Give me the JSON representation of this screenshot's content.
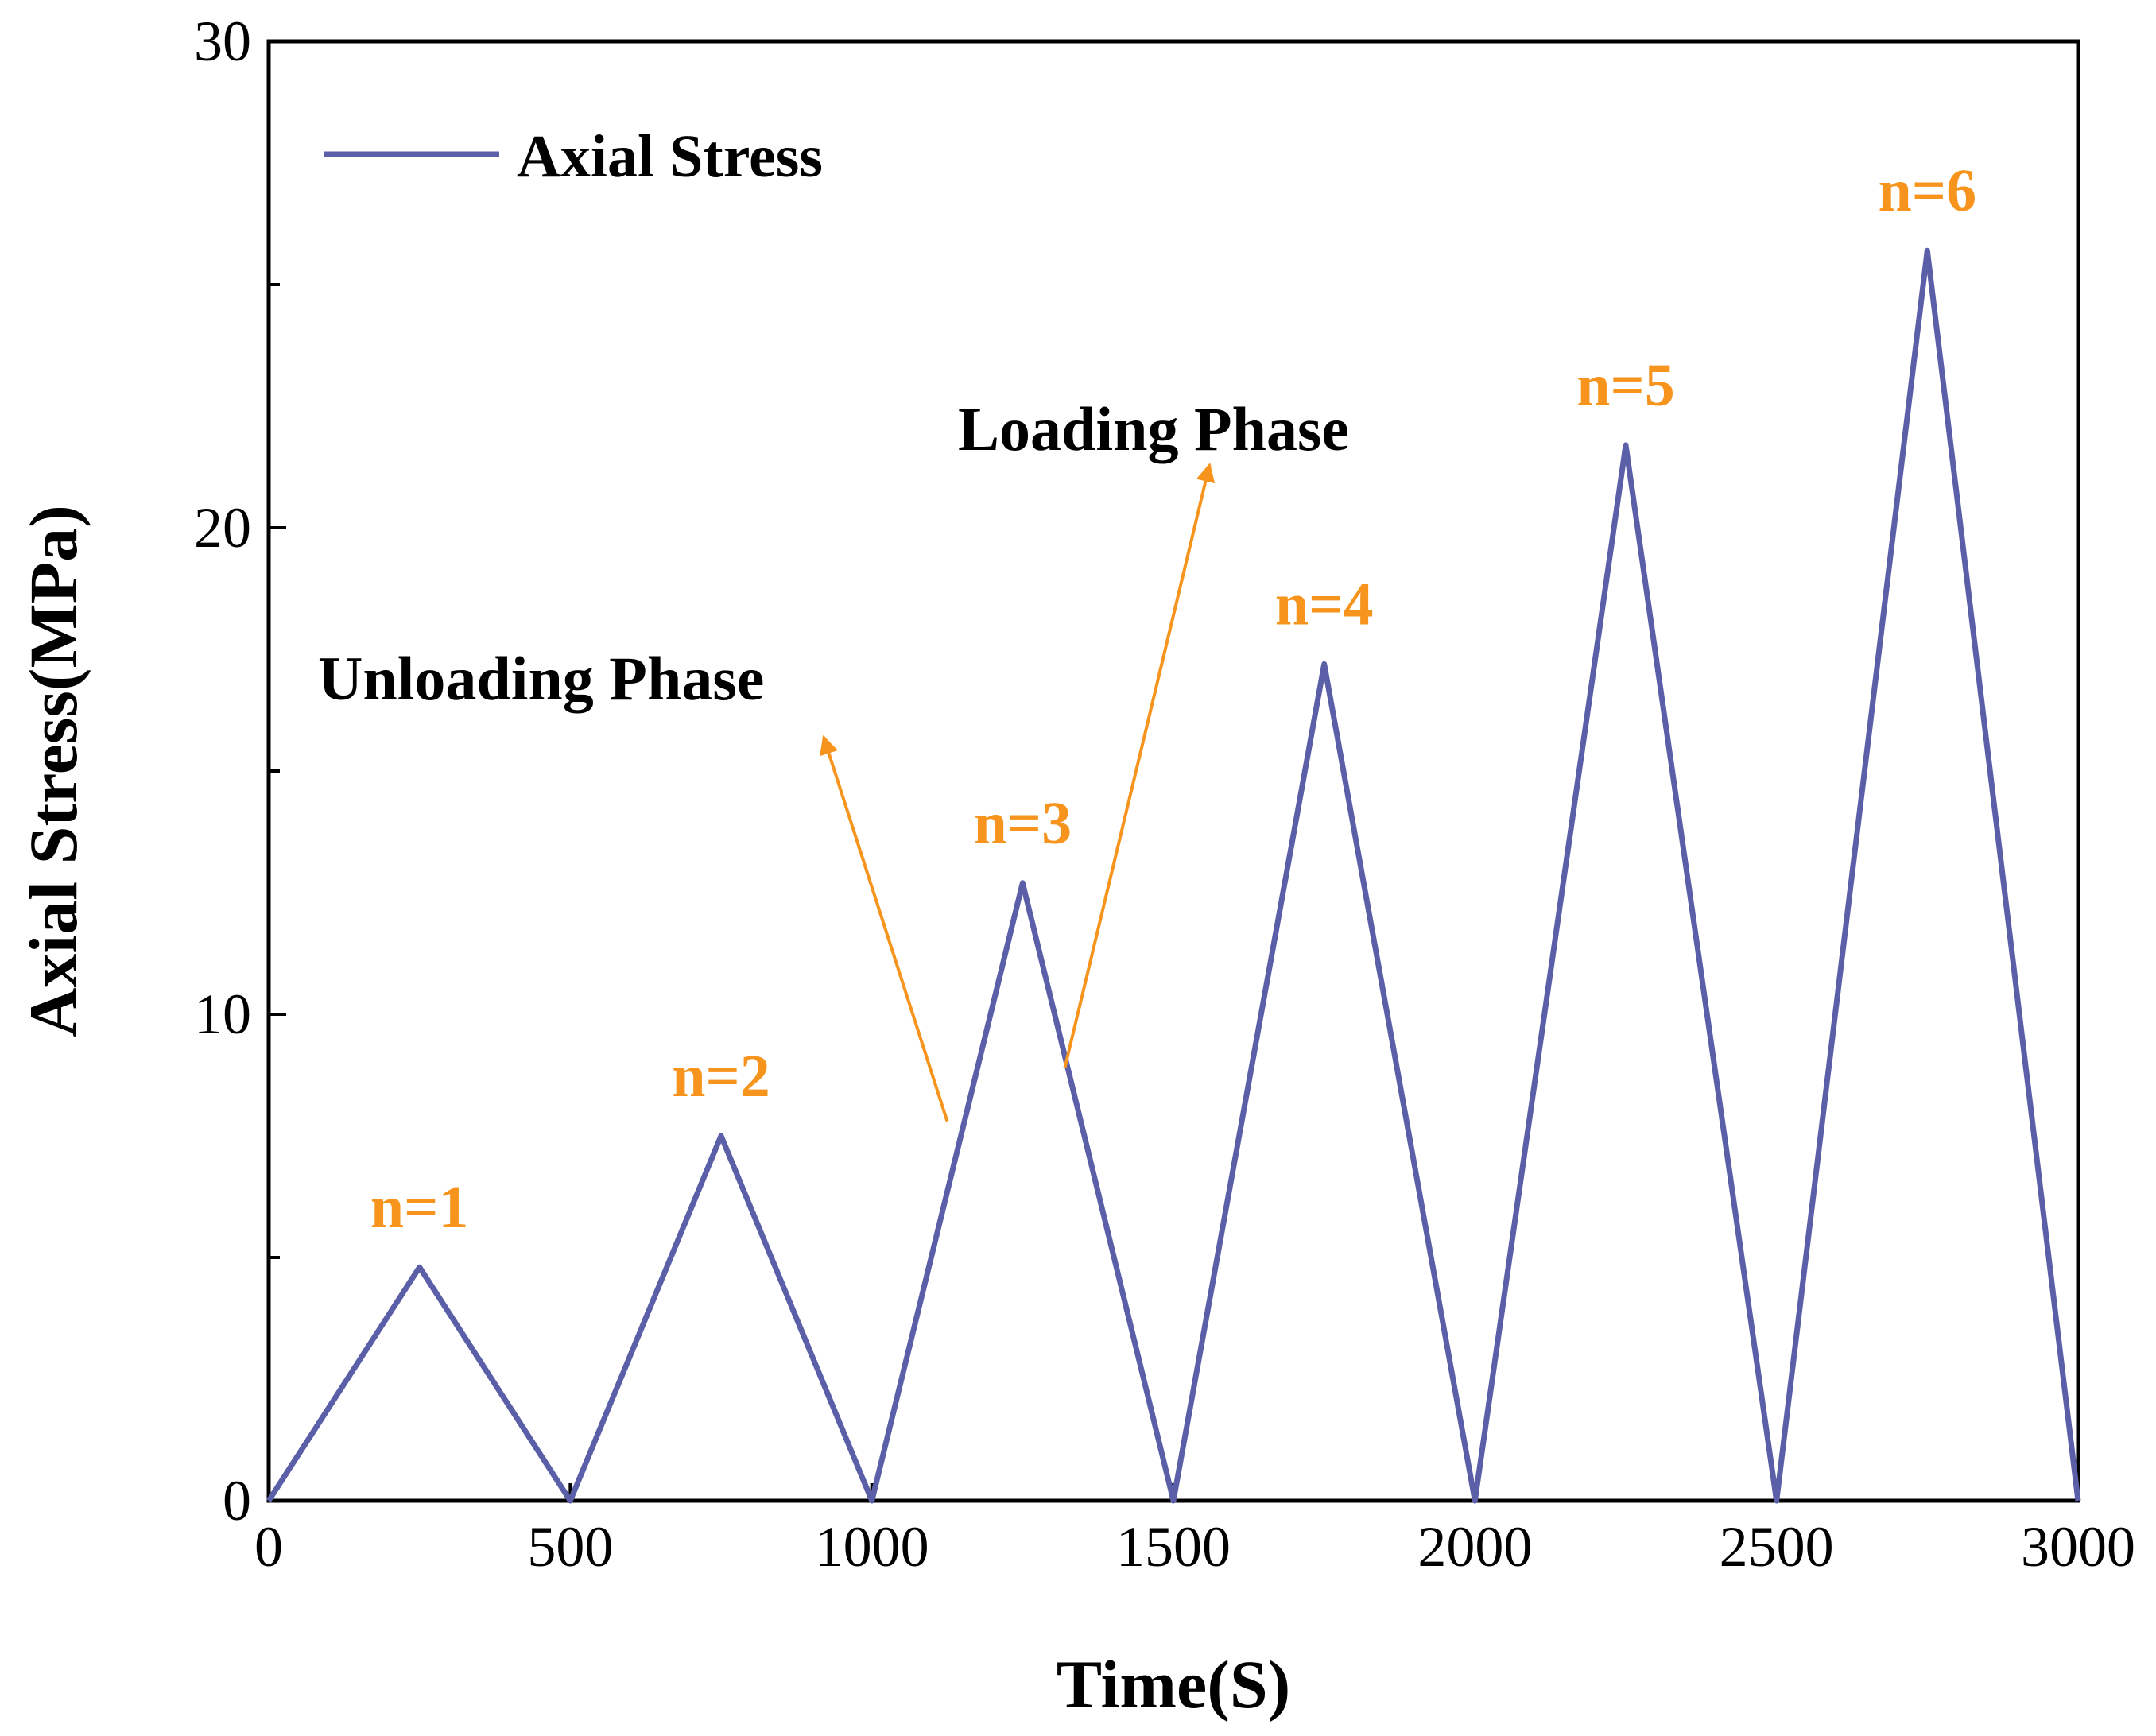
{
  "chart_data": {
    "type": "line",
    "title": "",
    "xlabel": "Time(S)",
    "ylabel": "Axial Stress(MPa)",
    "xlim": [
      0,
      3000
    ],
    "ylim": [
      0,
      30
    ],
    "x_ticks": [
      0,
      500,
      1000,
      1500,
      2000,
      2500,
      3000
    ],
    "y_ticks": [
      0,
      10,
      20,
      30
    ],
    "y_minor_ticks": [
      5,
      15,
      25
    ],
    "series": [
      {
        "name": "Axial Stress",
        "color": "#5b5fa8",
        "x": [
          0,
          250,
          500,
          750,
          1000,
          1250,
          1500,
          1750,
          2000,
          2250,
          2500,
          2750,
          3000
        ],
        "y": [
          0,
          4.8,
          0,
          7.5,
          0,
          12.7,
          0,
          17.2,
          0,
          21.7,
          0,
          25.7,
          0
        ]
      }
    ],
    "legend": {
      "position": "top-left",
      "entries": [
        "Axial Stress"
      ]
    },
    "cycle_labels": [
      {
        "text": "n=1",
        "x": 250,
        "y": 4.8
      },
      {
        "text": "n=2",
        "x": 750,
        "y": 7.5
      },
      {
        "text": "n=3",
        "x": 1250,
        "y": 12.7
      },
      {
        "text": "n=4",
        "x": 1750,
        "y": 17.2
      },
      {
        "text": "n=5",
        "x": 2250,
        "y": 21.7
      },
      {
        "text": "n=6",
        "x": 2750,
        "y": 25.7
      }
    ],
    "annotations": [
      {
        "text": "Unloading Phase",
        "arrow_from": [
          1125,
          7.8
        ],
        "arrow_to": [
          920,
          15.7
        ]
      },
      {
        "text": "Loading Phase",
        "arrow_from": [
          1320,
          8.9
        ],
        "arrow_to": [
          1560,
          21.3
        ]
      }
    ],
    "colors": {
      "line": "#5b5fa8",
      "annotation": "#f7941d",
      "axis": "#000000"
    }
  }
}
